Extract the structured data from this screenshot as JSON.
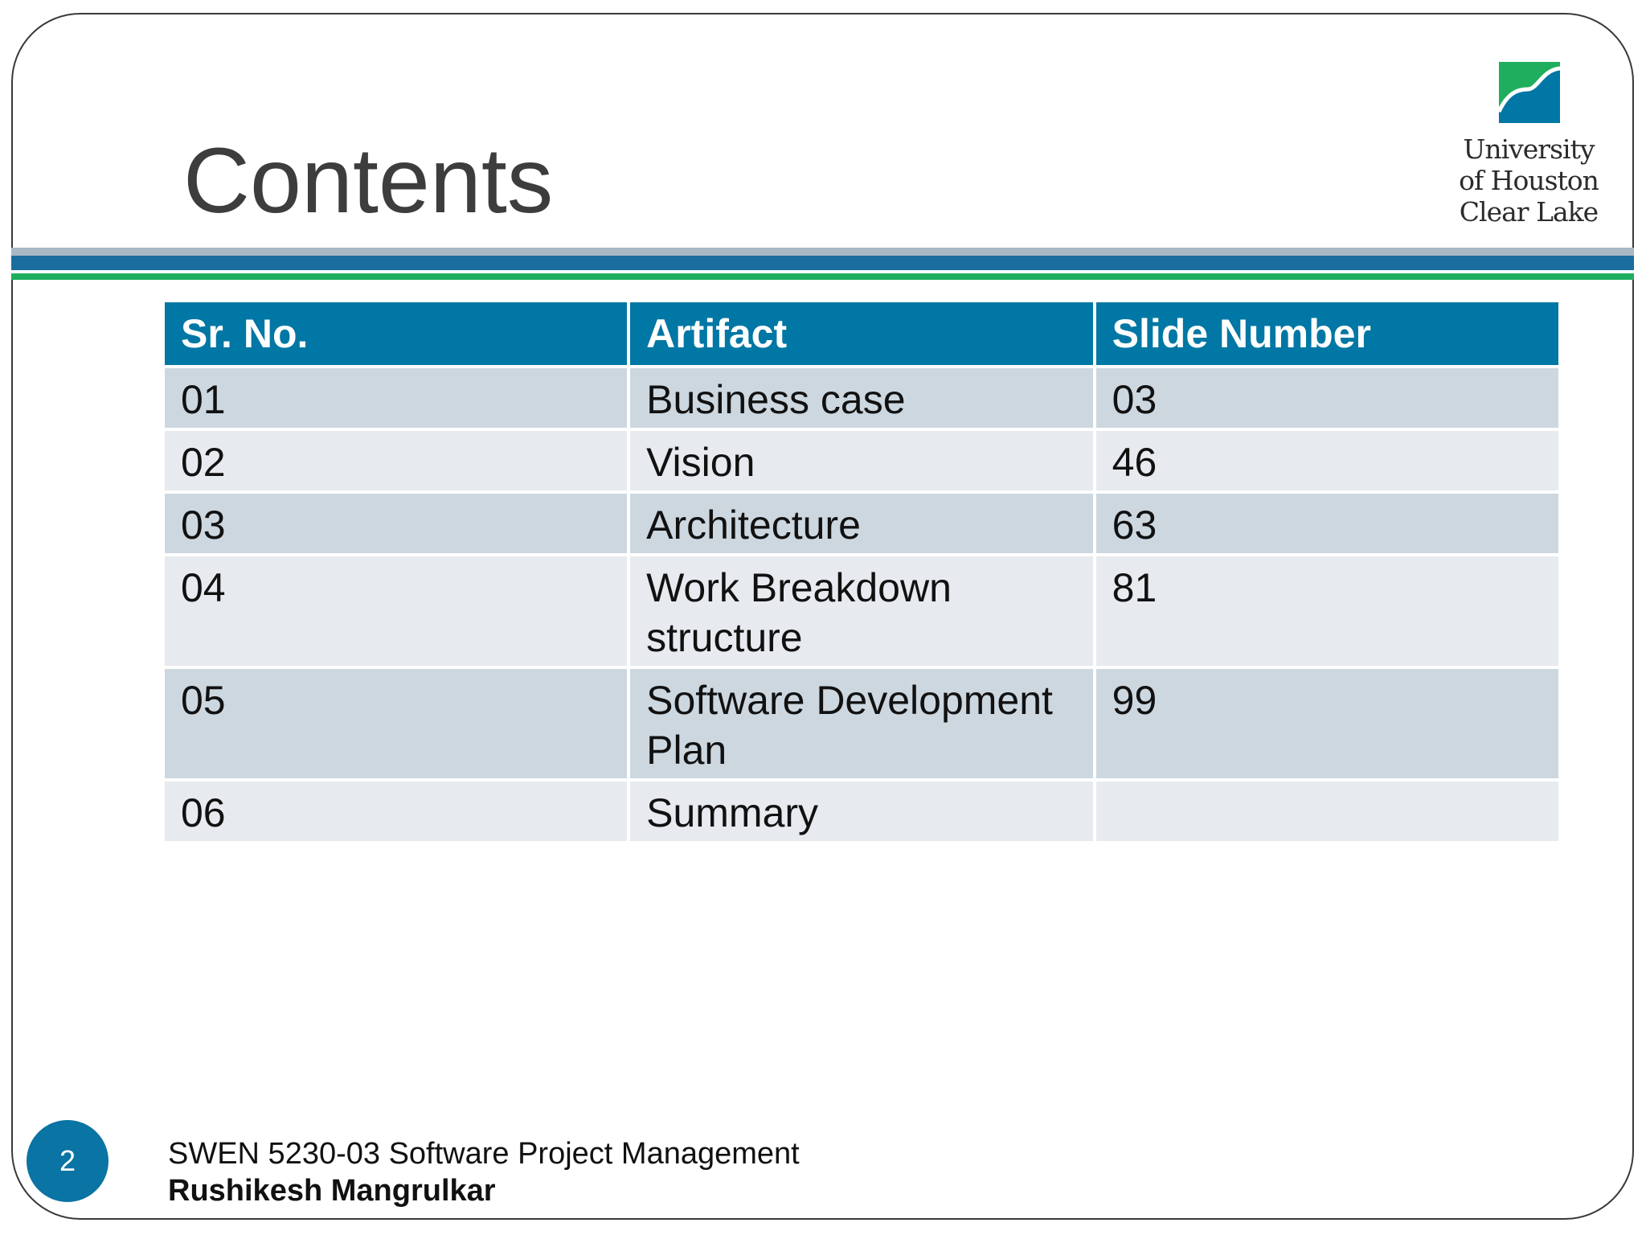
{
  "slide": {
    "title": "Contents",
    "page_number": "2"
  },
  "logo": {
    "line1": "University",
    "line2": "of Houston",
    "line3": "Clear Lake",
    "colors": {
      "green": "#1fae5e",
      "blue": "#0077a4"
    }
  },
  "table": {
    "headers": [
      "Sr. No.",
      "Artifact",
      "Slide Number"
    ],
    "rows": [
      [
        "01",
        "Business case",
        "03"
      ],
      [
        "02",
        "Vision",
        "46"
      ],
      [
        "03",
        "Architecture",
        "63"
      ],
      [
        "04",
        "Work Breakdown structure",
        "81"
      ],
      [
        "05",
        "Software Development Plan",
        "99"
      ],
      [
        "06",
        "Summary",
        ""
      ]
    ]
  },
  "footer": {
    "course": "SWEN 5230-03 Software Project Management",
    "author": "Rushikesh Mangrulkar"
  },
  "colors": {
    "header_bg": "#0077a4",
    "row_odd": "#cdd7e0",
    "row_even": "#e7eaee",
    "stripe_blue": "#1a6e9e",
    "stripe_green": "#1fae5e",
    "badge": "#0a74a4"
  }
}
